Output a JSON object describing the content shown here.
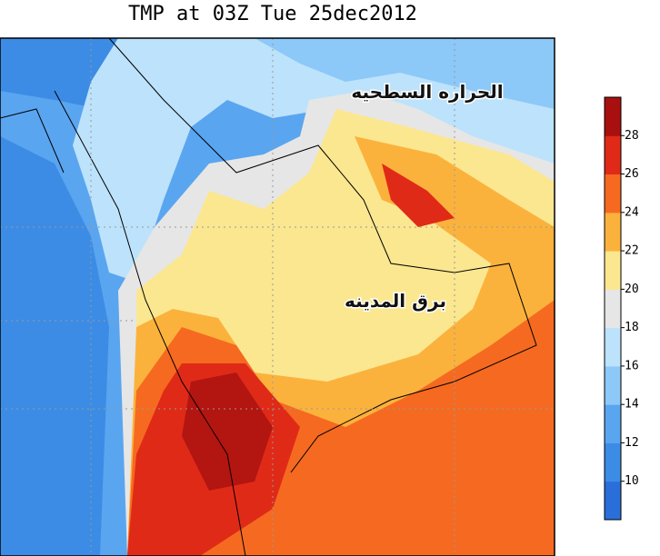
{
  "header": {
    "title": "TMP at 03Z Tue 25dec2012"
  },
  "labels": [
    "الحراره السطحيه",
    "برق المدينه"
  ],
  "legend": {
    "ticks": [
      10,
      12,
      14,
      16,
      18,
      20,
      22,
      24,
      26,
      28
    ],
    "colors": [
      "#2a6fd9",
      "#3c8ce6",
      "#5aa5f0",
      "#8cc8f8",
      "#bde2fb",
      "#e6e6e6",
      "#fbe790",
      "#fbb23c",
      "#f56a20",
      "#e02a18",
      "#a81010"
    ]
  }
}
